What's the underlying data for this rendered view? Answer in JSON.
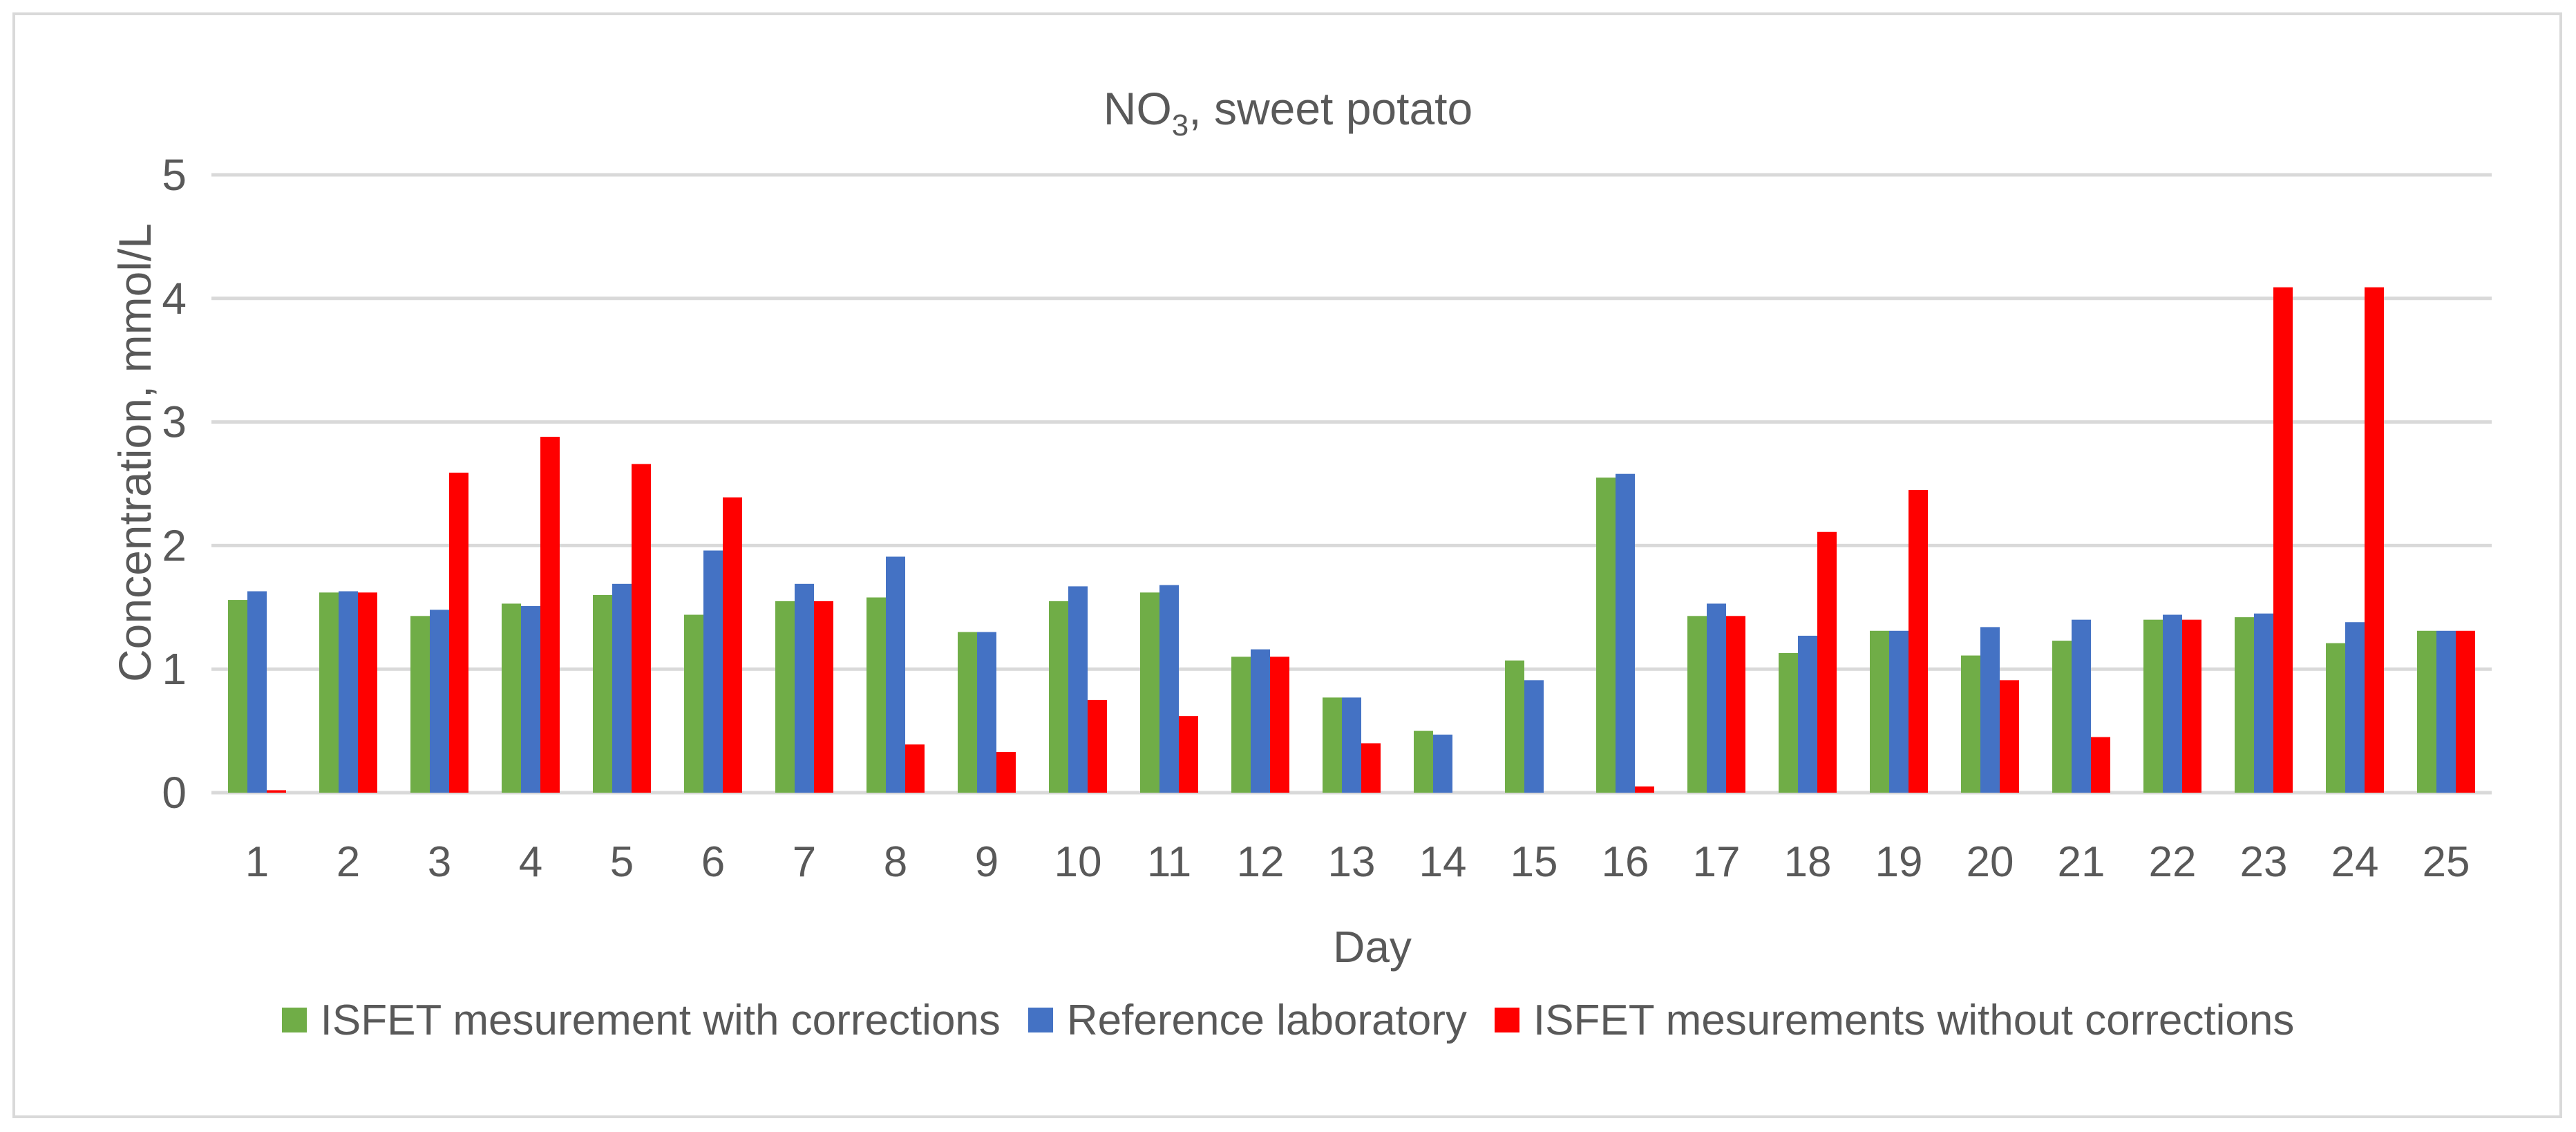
{
  "chart_data": {
    "type": "bar",
    "title_main": "NO",
    "title_sub": "3",
    "title_rest": ", sweet potato",
    "xlabel": "Day",
    "ylabel": "Concentration, mmol/L",
    "ylim": [
      0,
      5
    ],
    "yticks": [
      "0",
      "1",
      "2",
      "3",
      "4",
      "5"
    ],
    "grid": true,
    "legend_position": "bottom",
    "categories": [
      "1",
      "2",
      "3",
      "4",
      "5",
      "6",
      "7",
      "8",
      "9",
      "10",
      "11",
      "12",
      "13",
      "14",
      "15",
      "16",
      "17",
      "18",
      "19",
      "20",
      "21",
      "22",
      "23",
      "24",
      "25"
    ],
    "series": [
      {
        "name": "ISFET mesurement with corrections",
        "color": "#70ad47",
        "values": [
          1.56,
          1.62,
          1.43,
          1.53,
          1.6,
          1.44,
          1.55,
          1.58,
          1.3,
          1.55,
          1.62,
          1.1,
          0.77,
          0.5,
          1.07,
          2.55,
          1.43,
          1.13,
          1.31,
          1.11,
          1.23,
          1.4,
          1.42,
          1.21,
          1.31
        ]
      },
      {
        "name": "Reference laboratory",
        "color": "#4472c4",
        "values": [
          1.63,
          1.63,
          1.48,
          1.51,
          1.69,
          1.96,
          1.69,
          1.91,
          1.3,
          1.67,
          1.68,
          1.16,
          0.77,
          0.47,
          0.91,
          2.58,
          1.53,
          1.27,
          1.31,
          1.34,
          1.4,
          1.44,
          1.45,
          1.38,
          1.31
        ]
      },
      {
        "name": "ISFET mesurements without corrections",
        "color": "#ff0000",
        "values": [
          0.02,
          1.62,
          2.59,
          2.88,
          2.66,
          2.39,
          1.55,
          0.39,
          0.33,
          0.75,
          0.62,
          1.1,
          0.4,
          0.0,
          0.0,
          0.05,
          1.43,
          2.11,
          2.45,
          0.91,
          0.45,
          1.4,
          4.09,
          4.09,
          1.31
        ]
      }
    ]
  }
}
